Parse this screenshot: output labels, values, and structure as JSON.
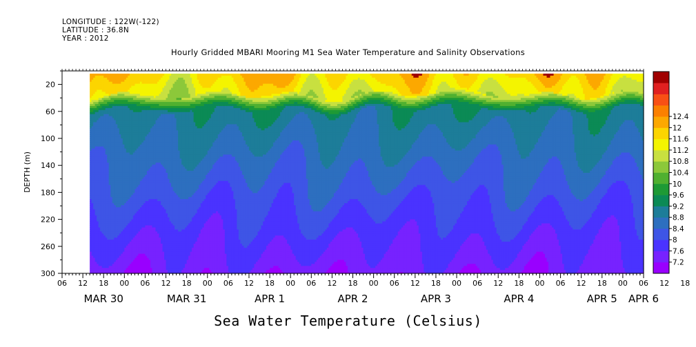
{
  "header": {
    "longitude": "LONGITUDE : 122W(-122)",
    "latitude": "LATITUDE : 36.8N",
    "year": "YEAR : 2012"
  },
  "chart_data": {
    "type": "heatmap",
    "title": "Hourly Gridded MBARI Mooring M1 Sea Water Temperature and Salinity Observations",
    "subtitle": "Sea Water Temperature (Celsius)",
    "ylabel": "DEPTH (m)",
    "xlabel": "",
    "ylim": [
      300,
      0
    ],
    "y_ticks": [
      20,
      60,
      100,
      140,
      180,
      220,
      260,
      300
    ],
    "x_range_hours": [
      0,
      168
    ],
    "data_start_hour": 8,
    "x_tick_labels": [
      "06",
      "12",
      "18",
      "00",
      "06",
      "12",
      "18",
      "00",
      "06",
      "12",
      "18",
      "00",
      "06",
      "12",
      "18",
      "00",
      "06",
      "12",
      "18",
      "00",
      "06",
      "12",
      "18",
      "00",
      "06",
      "12",
      "18",
      "00",
      "06",
      "12",
      "18",
      "00",
      "06"
    ],
    "x_day_labels": [
      "MAR 30",
      "MAR 31",
      "APR  1",
      "APR  2",
      "APR  3",
      "APR  4",
      "APR  5",
      "APR  6"
    ],
    "colorbar": {
      "levels": [
        7.2,
        7.6,
        8,
        8.4,
        8.8,
        9.2,
        9.6,
        10,
        10.4,
        10.8,
        11.2,
        11.6,
        12,
        12.4
      ],
      "colors": [
        "#9900ff",
        "#7722ff",
        "#4a33ff",
        "#3e55e6",
        "#2d6fbf",
        "#1d7d99",
        "#0b8a55",
        "#1e9a35",
        "#50b030",
        "#8cc83a",
        "#c8e040",
        "#f4f400",
        "#fcd500",
        "#fca800",
        "#fb8000",
        "#f85015",
        "#e02020",
        "#a00000"
      ]
    },
    "grid": false,
    "legend": "right"
  }
}
